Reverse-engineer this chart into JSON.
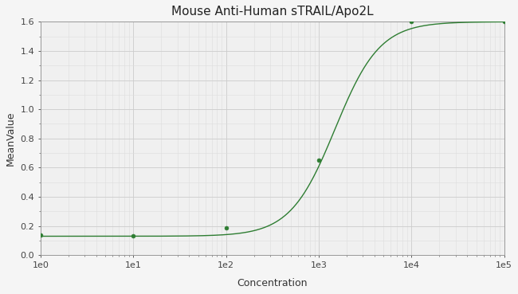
{
  "title": "Mouse Anti-Human sTRAIL/Apo2L",
  "xlabel": "Concentration",
  "ylabel": "MeanValue",
  "data_points_x": [
    1,
    10,
    100,
    1000,
    10000,
    100000
  ],
  "data_points_y": [
    0.14,
    0.13,
    0.19,
    0.65,
    1.6,
    1.6
  ],
  "curve_color": "#2e7d32",
  "point_color": "#2e7d32",
  "xmin": 1,
  "xmax": 100000,
  "ymin": 0,
  "ymax": 1.6,
  "yticks": [
    0,
    0.2,
    0.4,
    0.6,
    0.8,
    1.0,
    1.2,
    1.4,
    1.6
  ],
  "background_color": "#f5f5f5",
  "plot_bg_color": "#f0f0f0",
  "grid_major_color": "#cccccc",
  "grid_minor_color": "#dddddd",
  "title_fontsize": 11,
  "axis_label_fontsize": 9,
  "tick_fontsize": 8
}
